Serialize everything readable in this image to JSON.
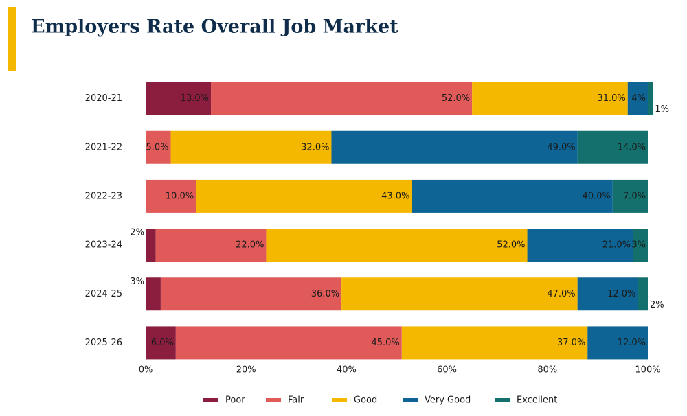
{
  "chart_data": {
    "type": "stacked-bar-horizontal",
    "title": "Employers Rate Overall Job Market",
    "categories": [
      "2020-21",
      "2021-22",
      "2022-23",
      "2023-24",
      "2024-25",
      "2025-26"
    ],
    "series": [
      {
        "name": "Poor",
        "color": "#8b1e3f",
        "values": [
          13,
          null,
          null,
          2,
          3,
          6
        ],
        "value_labels": [
          "13.0%",
          null,
          null,
          "2%",
          "3%",
          "6.0%"
        ]
      },
      {
        "name": "Fair",
        "color": "#e05a5a",
        "values": [
          52,
          5,
          10,
          22,
          36,
          45
        ],
        "value_labels": [
          "52.0%",
          "5.0%",
          "10.0%",
          "22.0%",
          "36.0%",
          "45.0%"
        ]
      },
      {
        "name": "Good",
        "color": "#f5b800",
        "values": [
          31,
          32,
          43,
          52,
          47,
          37
        ],
        "value_labels": [
          "31.0%",
          "32.0%",
          "43.0%",
          "52.0%",
          "47.0%",
          "37.0%"
        ]
      },
      {
        "name": "Very Good",
        "color": "#0e6494",
        "values": [
          4,
          49,
          40,
          21,
          12,
          12
        ],
        "value_labels": [
          "4%",
          "49.0%",
          "40.0%",
          "21.0%",
          "12.0%",
          "12.0%"
        ]
      },
      {
        "name": "Excellent",
        "color": "#13706d",
        "values": [
          1,
          14,
          7,
          3,
          2,
          null
        ],
        "value_labels": [
          "1%",
          "14.0%",
          "7.0%",
          "3%",
          "2%",
          null
        ]
      }
    ],
    "xlim": [
      0,
      100
    ],
    "xticks": [
      {
        "value": 0,
        "label": "0%"
      },
      {
        "value": 20,
        "label": "20%"
      },
      {
        "value": 40,
        "label": "40%"
      },
      {
        "value": 60,
        "label": "60%"
      },
      {
        "value": 80,
        "label": "80%"
      },
      {
        "value": 100,
        "label": "100%"
      }
    ],
    "legend": "bottom"
  }
}
